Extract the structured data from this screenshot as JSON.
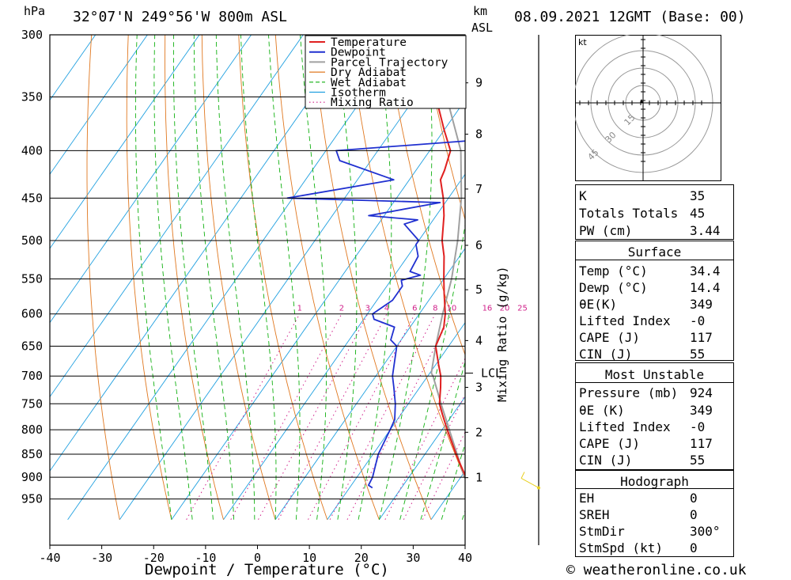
{
  "header": {
    "hpa_label": "hPa",
    "location": "32°07'N 249°56'W 800m ASL",
    "km_label": "km",
    "asl_label": "ASL",
    "datetime": "08.09.2021 12GMT (Base: 00)"
  },
  "footer": {
    "xlabel": "Dewpoint / Temperature (°C)",
    "copyright": "© weatheronline.co.uk"
  },
  "axis_right_label": "Mixing Ratio (g/kg)",
  "lcl_label": "LCL",
  "colors": {
    "temperature": "#e02020",
    "dewpoint": "#2030d0",
    "parcel": "#a0a0a0",
    "dry_adiabat": "#e07820",
    "wet_adiabat": "#10b010",
    "isotherm": "#20a0e0",
    "mixing_ratio": "#d0208a",
    "wind_barb": "#e8d020"
  },
  "chart_data": {
    "type": "line",
    "title": "32°07'N 249°56'W 800m ASL",
    "xlabel": "Dewpoint / Temperature (°C)",
    "ylabel": "hPa",
    "xlim": [
      -40,
      40
    ],
    "ylim": [
      990,
      300
    ],
    "y_scale": "log",
    "x_ticks": [
      "-40",
      "-30",
      "-20",
      "-10",
      "0",
      "10",
      "20",
      "30",
      "40"
    ],
    "x_tick_values": [
      -40,
      -30,
      -20,
      -10,
      0,
      10,
      20,
      30,
      40
    ],
    "y_ticks": [
      300,
      350,
      400,
      450,
      500,
      550,
      600,
      650,
      700,
      750,
      800,
      850,
      900,
      950
    ],
    "km_ticks": [
      {
        "km": "1",
        "p": 901
      },
      {
        "km": "2",
        "p": 805
      },
      {
        "km": "3",
        "p": 720
      },
      {
        "km": "4",
        "p": 641
      },
      {
        "km": "5",
        "p": 565
      },
      {
        "km": "6",
        "p": 506
      },
      {
        "km": "7",
        "p": 440
      },
      {
        "km": "8",
        "p": 384
      },
      {
        "km": "9",
        "p": 338
      }
    ],
    "lcl_pressure": 695,
    "mixing_ratio_labels": [
      "1",
      "2",
      "3",
      "4",
      "6",
      "8",
      "10",
      "16",
      "20",
      "25"
    ],
    "mixing_ratio_values": [
      1,
      2,
      3,
      4,
      6,
      8,
      10,
      16,
      20,
      25
    ],
    "legend": [
      "Temperature",
      "Dewpoint",
      "Parcel Trajectory",
      "Dry Adiabat",
      "Wet Adiabat",
      "Isotherm",
      "Mixing Ratio"
    ],
    "legend_position": "top-right",
    "series": [
      {
        "name": "Temperature",
        "points": [
          [
            924,
            34.4
          ],
          [
            910,
            32.5
          ],
          [
            900,
            31
          ],
          [
            870,
            28
          ],
          [
            850,
            26
          ],
          [
            800,
            21
          ],
          [
            770,
            18
          ],
          [
            750,
            16
          ],
          [
            720,
            14
          ],
          [
            700,
            12.5
          ],
          [
            680,
            10.5
          ],
          [
            650,
            7.5
          ],
          [
            620,
            6.5
          ],
          [
            600,
            5
          ],
          [
            570,
            2
          ],
          [
            550,
            0
          ],
          [
            520,
            -3
          ],
          [
            500,
            -5.5
          ],
          [
            470,
            -8.5
          ],
          [
            450,
            -11
          ],
          [
            430,
            -14
          ],
          [
            420,
            -14.5
          ],
          [
            400,
            -16
          ],
          [
            380,
            -20
          ],
          [
            360,
            -24
          ],
          [
            350,
            -26
          ]
        ]
      },
      {
        "name": "Dewpoint",
        "points": [
          [
            924,
            14.4
          ],
          [
            918,
            13.3
          ],
          [
            900,
            13
          ],
          [
            850,
            11
          ],
          [
            800,
            10
          ],
          [
            780,
            9.5
          ],
          [
            750,
            7.5
          ],
          [
            720,
            5
          ],
          [
            700,
            3.2
          ],
          [
            650,
            0
          ],
          [
            640,
            -2
          ],
          [
            620,
            -3
          ],
          [
            608,
            -8
          ],
          [
            600,
            -9
          ],
          [
            580,
            -7
          ],
          [
            560,
            -7
          ],
          [
            552,
            -8
          ],
          [
            545,
            -5
          ],
          [
            540,
            -7.5
          ],
          [
            520,
            -8
          ],
          [
            505,
            -10
          ],
          [
            500,
            -10
          ],
          [
            480,
            -15
          ],
          [
            475,
            -13
          ],
          [
            470,
            -23
          ],
          [
            455,
            -11
          ],
          [
            450,
            -41
          ],
          [
            430,
            -23
          ],
          [
            410,
            -36
          ],
          [
            400,
            -38
          ],
          [
            390,
            -13
          ],
          [
            370,
            -17
          ],
          [
            355,
            -17
          ],
          [
            345,
            -17
          ],
          [
            330,
            -16
          ],
          [
            320,
            -15.5
          ],
          [
            310,
            -16
          ],
          [
            305,
            -1
          ],
          [
            302,
            -12
          ],
          [
            300,
            -10
          ]
        ]
      },
      {
        "name": "Parcel Trajectory",
        "points": [
          [
            924,
            34.4
          ],
          [
            900,
            30.7
          ],
          [
            850,
            26.2
          ],
          [
            800,
            21.4
          ],
          [
            750,
            16.3
          ],
          [
            700,
            11
          ],
          [
            695,
            10.3
          ],
          [
            650,
            7.5
          ],
          [
            600,
            4.5
          ],
          [
            550,
            1.5
          ],
          [
            500,
            -2.5
          ],
          [
            450,
            -7.5
          ],
          [
            400,
            -14
          ],
          [
            350,
            -24
          ]
        ]
      }
    ],
    "wind_barb": {
      "pressure": 924,
      "direction_deg": 300,
      "speed_kt": 0
    }
  },
  "hodograph": {
    "unit_label": "kt",
    "ring_labels": [
      "15",
      "30",
      "45"
    ]
  },
  "indices": {
    "rows": [
      {
        "k": "K",
        "v": "35"
      },
      {
        "k": "Totals Totals",
        "v": "45"
      },
      {
        "k": "PW (cm)",
        "v": "3.44"
      }
    ],
    "surface": {
      "title": "Surface",
      "rows": [
        {
          "k": "Temp (°C)",
          "v": "34.4"
        },
        {
          "k": "Dewp (°C)",
          "v": "14.4"
        },
        {
          "k": "θE(K)",
          "v": "349"
        },
        {
          "k": "Lifted Index",
          "v": "-0"
        },
        {
          "k": "CAPE (J)",
          "v": "117"
        },
        {
          "k": "CIN (J)",
          "v": "55"
        }
      ]
    },
    "most_unstable": {
      "title": "Most Unstable",
      "rows": [
        {
          "k": "Pressure (mb)",
          "v": "924"
        },
        {
          "k": "θE (K)",
          "v": "349"
        },
        {
          "k": "Lifted Index",
          "v": "-0"
        },
        {
          "k": "CAPE (J)",
          "v": "117"
        },
        {
          "k": "CIN (J)",
          "v": "55"
        }
      ]
    },
    "hodograph": {
      "title": "Hodograph",
      "rows": [
        {
          "k": "EH",
          "v": "0"
        },
        {
          "k": "SREH",
          "v": "0"
        },
        {
          "k": "StmDir",
          "v": "300°"
        },
        {
          "k": "StmSpd (kt)",
          "v": "0"
        }
      ]
    }
  }
}
